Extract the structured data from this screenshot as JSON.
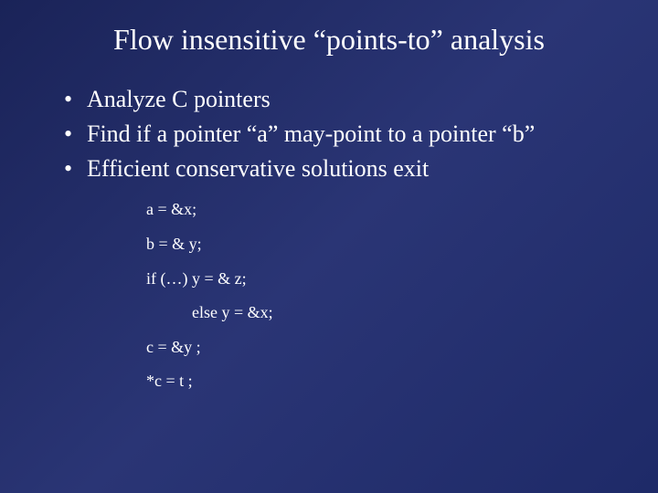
{
  "slide": {
    "title": "Flow insensitive “points-to” analysis",
    "bullets": [
      "Analyze C pointers",
      "Find if a pointer “a” may-point to a pointer “b”",
      "Efficient conservative solutions exit"
    ],
    "code": [
      "a =  &x;",
      "b = & y;",
      "if (…)  y = & z;",
      "else  y = &x;",
      "c = &y ;",
      "*c = t ;"
    ]
  },
  "styling": {
    "background_gradient_start": "#1a2358",
    "background_gradient_mid": "#2a3575",
    "background_gradient_end": "#1e2a68",
    "text_color": "#ffffff",
    "title_fontsize": 32,
    "bullet_fontsize": 26,
    "code_fontsize": 18,
    "font_family": "Times New Roman"
  }
}
